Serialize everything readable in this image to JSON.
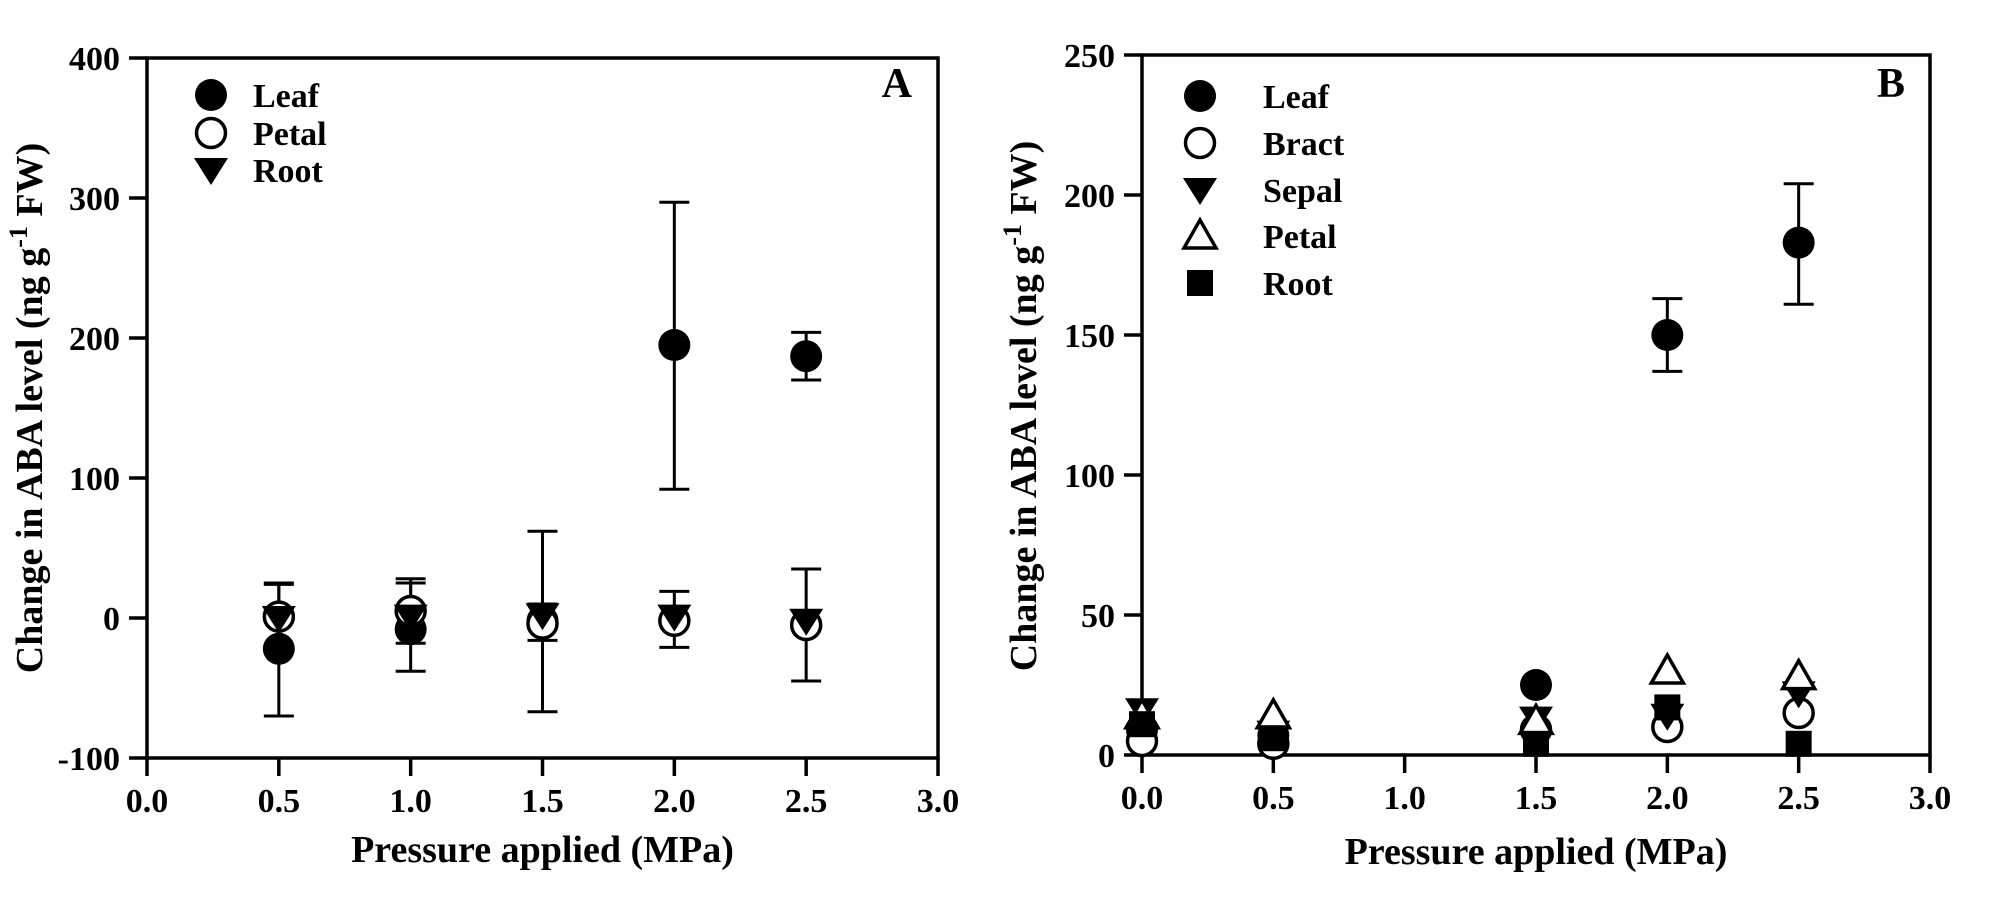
{
  "figure_background": "#ffffff",
  "ink_color": "#000000",
  "chart_data": [
    {
      "type": "scatter",
      "panel_label": "A",
      "xlabel": "Pressure applied (MPa)",
      "ylabel_parts": {
        "before": "Change in ABA level (ng g",
        "sup": "-1",
        "after": " FW)"
      },
      "xlim": [
        0.0,
        3.0
      ],
      "ylim": [
        -100,
        400
      ],
      "xtick_labels": [
        "0.0",
        "0.5",
        "1.0",
        "1.5",
        "2.0",
        "2.5",
        "3.0"
      ],
      "xtick_values": [
        0.0,
        0.5,
        1.0,
        1.5,
        2.0,
        2.5,
        3.0
      ],
      "ytick_labels": [
        "-100",
        "0",
        "100",
        "200",
        "300",
        "400"
      ],
      "ytick_values": [
        -100,
        0,
        100,
        200,
        300,
        400
      ],
      "grid": false,
      "legend_position": "top-left-inside",
      "series": [
        {
          "name": "Leaf",
          "marker": "circle-filled",
          "points": [
            {
              "x": 0.5,
              "y": -22,
              "lo": -70,
              "hi": 25
            },
            {
              "x": 1.0,
              "y": -8,
              "lo": -38,
              "hi": 25
            },
            {
              "x": 1.5,
              "y": -2,
              "lo": -67,
              "hi": 62
            },
            {
              "x": 2.0,
              "y": 195,
              "lo": 92,
              "hi": 297
            },
            {
              "x": 2.5,
              "y": 187,
              "lo": 170,
              "hi": 204
            }
          ]
        },
        {
          "name": "Petal",
          "marker": "circle-open",
          "points": [
            {
              "x": 0.5,
              "y": 1,
              "lo": -22,
              "hi": 24
            },
            {
              "x": 1.0,
              "y": 5,
              "lo": -18,
              "hi": 28
            },
            {
              "x": 1.5,
              "y": -4,
              "lo": -16,
              "hi": 10
            },
            {
              "x": 2.0,
              "y": -2,
              "lo": -21,
              "hi": 19
            },
            {
              "x": 2.5,
              "y": -5,
              "lo": -45,
              "hi": 35
            }
          ]
        },
        {
          "name": "Root",
          "marker": "triangle-down-filled",
          "points": [
            {
              "x": 0.5,
              "y": 0
            },
            {
              "x": 1.0,
              "y": 1
            },
            {
              "x": 1.5,
              "y": 2
            },
            {
              "x": 2.0,
              "y": 1
            },
            {
              "x": 2.5,
              "y": -2
            }
          ]
        }
      ]
    },
    {
      "type": "scatter",
      "panel_label": "B",
      "xlabel": "Pressure applied (MPa)",
      "ylabel_parts": {
        "before": "Change in ABA level (ng g",
        "sup": "-1",
        "after": " FW)"
      },
      "xlim": [
        0.0,
        3.0
      ],
      "ylim": [
        0,
        250
      ],
      "xtick_labels": [
        "0.0",
        "0.5",
        "1.0",
        "1.5",
        "2.0",
        "2.5",
        "3.0"
      ],
      "xtick_values": [
        0.0,
        0.5,
        1.0,
        1.5,
        2.0,
        2.5,
        3.0
      ],
      "ytick_labels": [
        "0",
        "50",
        "100",
        "150",
        "200",
        "250"
      ],
      "ytick_values": [
        0,
        50,
        100,
        150,
        200,
        250
      ],
      "grid": false,
      "legend_position": "top-left-inside",
      "series": [
        {
          "name": "Leaf",
          "marker": "circle-filled",
          "points": [
            {
              "x": 0.0,
              "y": 9
            },
            {
              "x": 0.5,
              "y": 7
            },
            {
              "x": 1.5,
              "y": 25
            },
            {
              "x": 2.0,
              "y": 150,
              "lo": 137,
              "hi": 163
            },
            {
              "x": 2.5,
              "y": 183,
              "lo": 161,
              "hi": 204
            }
          ]
        },
        {
          "name": "Bract",
          "marker": "circle-open",
          "points": [
            {
              "x": 0.0,
              "y": 5
            },
            {
              "x": 0.5,
              "y": 4
            },
            {
              "x": 1.5,
              "y": 9
            },
            {
              "x": 2.0,
              "y": 10
            },
            {
              "x": 2.5,
              "y": 15
            }
          ]
        },
        {
          "name": "Sepal",
          "marker": "triangle-down-filled",
          "points": [
            {
              "x": 0.0,
              "y": 16
            },
            {
              "x": 0.5,
              "y": 8
            },
            {
              "x": 1.5,
              "y": 13
            },
            {
              "x": 2.0,
              "y": 14
            },
            {
              "x": 2.5,
              "y": 22
            }
          ]
        },
        {
          "name": "Petal",
          "marker": "triangle-up-open",
          "points": [
            {
              "x": 0.0,
              "y": 14
            },
            {
              "x": 0.5,
              "y": 14
            },
            {
              "x": 1.5,
              "y": 12
            },
            {
              "x": 2.0,
              "y": 30
            },
            {
              "x": 2.5,
              "y": 28
            }
          ]
        },
        {
          "name": "Root",
          "marker": "square-filled",
          "points": [
            {
              "x": 0.0,
              "y": 11
            },
            {
              "x": 0.5,
              "y": 6
            },
            {
              "x": 1.5,
              "y": 4
            },
            {
              "x": 2.0,
              "y": 17
            },
            {
              "x": 2.5,
              "y": 4
            }
          ]
        }
      ]
    }
  ]
}
